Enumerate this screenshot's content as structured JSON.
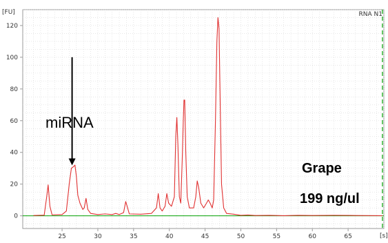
{
  "chart_data": {
    "type": "line",
    "title": "RNA N1",
    "x_unit": "[s]",
    "y_unit": "[FU]",
    "xlim": [
      19.5,
      70
    ],
    "ylim": [
      -8,
      130
    ],
    "x_ticks": [
      25,
      30,
      35,
      40,
      45,
      50,
      55,
      60,
      65
    ],
    "y_ticks": [
      0,
      20,
      40,
      60,
      80,
      100,
      120
    ],
    "grid": true,
    "series": [
      {
        "color": "#e03030",
        "points": [
          [
            21,
            0.2
          ],
          [
            22.5,
            0.4
          ],
          [
            22.85,
            12
          ],
          [
            23.05,
            19.5
          ],
          [
            23.3,
            6
          ],
          [
            23.6,
            0.6
          ],
          [
            25,
            0.8
          ],
          [
            25.6,
            3
          ],
          [
            26,
            20
          ],
          [
            26.3,
            30
          ],
          [
            26.6,
            31
          ],
          [
            26.8,
            32
          ],
          [
            27,
            25
          ],
          [
            27.2,
            13
          ],
          [
            27.5,
            8
          ],
          [
            27.9,
            4
          ],
          [
            28.1,
            5
          ],
          [
            28.35,
            11
          ],
          [
            28.6,
            4
          ],
          [
            29,
            1.5
          ],
          [
            30,
            0.8
          ],
          [
            31,
            1.2
          ],
          [
            32,
            0.8
          ],
          [
            32.5,
            1.5
          ],
          [
            33,
            0.8
          ],
          [
            33.6,
            2
          ],
          [
            33.9,
            9
          ],
          [
            34.1,
            6
          ],
          [
            34.4,
            1.2
          ],
          [
            36,
            1
          ],
          [
            37.5,
            1.5
          ],
          [
            38.2,
            5
          ],
          [
            38.45,
            14
          ],
          [
            38.7,
            5
          ],
          [
            39,
            3
          ],
          [
            39.4,
            6
          ],
          [
            39.65,
            14
          ],
          [
            39.9,
            8
          ],
          [
            40.3,
            6
          ],
          [
            40.7,
            12
          ],
          [
            40.9,
            50
          ],
          [
            41.05,
            62
          ],
          [
            41.2,
            45
          ],
          [
            41.4,
            12
          ],
          [
            41.6,
            8
          ],
          [
            41.8,
            35
          ],
          [
            41.95,
            60
          ],
          [
            42.05,
            73
          ],
          [
            42.15,
            73
          ],
          [
            42.3,
            40
          ],
          [
            42.5,
            12
          ],
          [
            42.8,
            5
          ],
          [
            43.4,
            5
          ],
          [
            43.7,
            12
          ],
          [
            43.9,
            22
          ],
          [
            44.1,
            18
          ],
          [
            44.4,
            8
          ],
          [
            44.8,
            5
          ],
          [
            45.2,
            8
          ],
          [
            45.45,
            10
          ],
          [
            45.7,
            8
          ],
          [
            46,
            5
          ],
          [
            46.2,
            10
          ],
          [
            46.45,
            60
          ],
          [
            46.65,
            110
          ],
          [
            46.8,
            125
          ],
          [
            46.95,
            118
          ],
          [
            47.1,
            75
          ],
          [
            47.3,
            20
          ],
          [
            47.6,
            5
          ],
          [
            48,
            1.5
          ],
          [
            49,
            1
          ],
          [
            50,
            0.3
          ],
          [
            51,
            0.5
          ],
          [
            52,
            0.2
          ],
          [
            54,
            0.3
          ],
          [
            56,
            0.1
          ],
          [
            58,
            0.3
          ],
          [
            60,
            0.2
          ],
          [
            63,
            0.3
          ],
          [
            66,
            0.2
          ],
          [
            69.8,
            0.1
          ]
        ]
      },
      {
        "color": "#00a000",
        "points": [
          [
            19.5,
            0
          ],
          [
            70,
            0
          ]
        ]
      }
    ],
    "vertical_marker": {
      "x": 69.8,
      "color": "#00a000",
      "style": "dashed"
    },
    "annotations": [
      {
        "text": "miRNA",
        "arrow_x": 26.4,
        "arrow_y_from": 100,
        "arrow_y_to": 34
      },
      {
        "text": "Grape"
      },
      {
        "text": "199 ng/ul"
      }
    ]
  }
}
